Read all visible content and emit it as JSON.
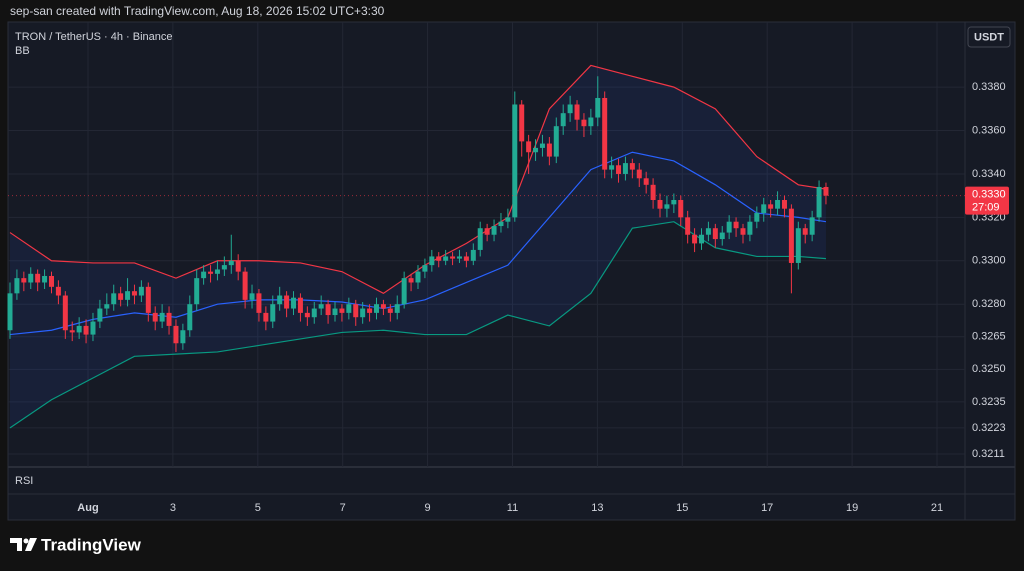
{
  "header": "sep-san created with TradingView.com, Aug 18, 2026 15:02 UTC+3:30",
  "footer": {
    "brand": "TradingView"
  },
  "chart_data": {
    "type": "candlestick",
    "title": "TRON / TetherUS · 4h · Binance",
    "indicator": "BB",
    "lower_pane": "RSI",
    "currency": "USDT",
    "up_color": "#22ab94",
    "down_color": "#f23645",
    "ylim": [
      0.3205,
      0.341
    ],
    "yticks": [
      {
        "value": 0.338,
        "label": "0.3380"
      },
      {
        "value": 0.336,
        "label": "0.3360"
      },
      {
        "value": 0.334,
        "label": "0.3340"
      },
      {
        "value": 0.332,
        "label": "0.3320"
      },
      {
        "value": 0.33,
        "label": "0.3300"
      },
      {
        "value": 0.328,
        "label": "0.3280"
      },
      {
        "value": 0.3265,
        "label": "0.3265"
      },
      {
        "value": 0.325,
        "label": "0.3250"
      },
      {
        "value": 0.3235,
        "label": "0.3235"
      },
      {
        "value": 0.3223,
        "label": "0.3223"
      },
      {
        "value": 0.3211,
        "label": "0.3211"
      }
    ],
    "xtick_labels": [
      "Aug",
      "3",
      "5",
      "7",
      "9",
      "11",
      "13",
      "15",
      "17",
      "19",
      "21"
    ],
    "last_price": {
      "value": 0.333,
      "label": "0.3330"
    },
    "countdown": "27:09",
    "candles": [
      [
        0.3268,
        0.329,
        0.3264,
        0.3285
      ],
      [
        0.3285,
        0.3296,
        0.3282,
        0.3292
      ],
      [
        0.3292,
        0.3295,
        0.3286,
        0.329
      ],
      [
        0.329,
        0.3297,
        0.3287,
        0.3294
      ],
      [
        0.3294,
        0.3296,
        0.3286,
        0.329
      ],
      [
        0.329,
        0.3296,
        0.3287,
        0.3293
      ],
      [
        0.3293,
        0.3295,
        0.3285,
        0.3288
      ],
      [
        0.3288,
        0.3291,
        0.328,
        0.3284
      ],
      [
        0.3284,
        0.3286,
        0.3264,
        0.3268
      ],
      [
        0.3268,
        0.3272,
        0.3263,
        0.3267
      ],
      [
        0.3267,
        0.3274,
        0.3264,
        0.327
      ],
      [
        0.327,
        0.3273,
        0.3262,
        0.3266
      ],
      [
        0.3266,
        0.3276,
        0.3263,
        0.3272
      ],
      [
        0.3272,
        0.3282,
        0.3269,
        0.3278
      ],
      [
        0.3278,
        0.3285,
        0.3275,
        0.328
      ],
      [
        0.328,
        0.3289,
        0.3277,
        0.3285
      ],
      [
        0.3285,
        0.3288,
        0.3279,
        0.3282
      ],
      [
        0.3282,
        0.3292,
        0.3279,
        0.3286
      ],
      [
        0.3286,
        0.3289,
        0.328,
        0.3284
      ],
      [
        0.3284,
        0.3291,
        0.3281,
        0.3288
      ],
      [
        0.3288,
        0.329,
        0.3272,
        0.3276
      ],
      [
        0.3276,
        0.3279,
        0.3268,
        0.3272
      ],
      [
        0.3272,
        0.328,
        0.3269,
        0.3276
      ],
      [
        0.3276,
        0.3279,
        0.3266,
        0.327
      ],
      [
        0.327,
        0.3273,
        0.3258,
        0.3262
      ],
      [
        0.3262,
        0.3271,
        0.3259,
        0.3268
      ],
      [
        0.3268,
        0.3284,
        0.3265,
        0.328
      ],
      [
        0.328,
        0.3296,
        0.3277,
        0.3292
      ],
      [
        0.3292,
        0.3298,
        0.3289,
        0.3295
      ],
      [
        0.3295,
        0.3298,
        0.329,
        0.3294
      ],
      [
        0.3294,
        0.33,
        0.3291,
        0.3296
      ],
      [
        0.3296,
        0.3302,
        0.3293,
        0.3298
      ],
      [
        0.3298,
        0.3312,
        0.3294,
        0.33
      ],
      [
        0.33,
        0.3303,
        0.3291,
        0.3295
      ],
      [
        0.3295,
        0.3297,
        0.3278,
        0.3282
      ],
      [
        0.3282,
        0.3289,
        0.3278,
        0.3285
      ],
      [
        0.3285,
        0.3287,
        0.3272,
        0.3276
      ],
      [
        0.3276,
        0.3279,
        0.3268,
        0.3272
      ],
      [
        0.3272,
        0.3284,
        0.3269,
        0.328
      ],
      [
        0.328,
        0.3288,
        0.3277,
        0.3284
      ],
      [
        0.3284,
        0.3286,
        0.3274,
        0.3278
      ],
      [
        0.3278,
        0.3286,
        0.3275,
        0.3283
      ],
      [
        0.3283,
        0.3285,
        0.3272,
        0.3276
      ],
      [
        0.3276,
        0.3279,
        0.327,
        0.3274
      ],
      [
        0.3274,
        0.3281,
        0.3271,
        0.3278
      ],
      [
        0.3278,
        0.3284,
        0.3275,
        0.328
      ],
      [
        0.328,
        0.3282,
        0.3271,
        0.3275
      ],
      [
        0.3275,
        0.3281,
        0.3272,
        0.3278
      ],
      [
        0.3278,
        0.328,
        0.3272,
        0.3276
      ],
      [
        0.3276,
        0.3283,
        0.3273,
        0.328
      ],
      [
        0.328,
        0.3282,
        0.327,
        0.3274
      ],
      [
        0.3274,
        0.3281,
        0.3271,
        0.3278
      ],
      [
        0.3278,
        0.328,
        0.3272,
        0.3276
      ],
      [
        0.3276,
        0.3283,
        0.3273,
        0.328
      ],
      [
        0.328,
        0.3282,
        0.3275,
        0.3278
      ],
      [
        0.3278,
        0.328,
        0.3272,
        0.3276
      ],
      [
        0.3276,
        0.3284,
        0.3273,
        0.328
      ],
      [
        0.328,
        0.3295,
        0.3278,
        0.3292
      ],
      [
        0.3292,
        0.3294,
        0.3286,
        0.329
      ],
      [
        0.329,
        0.3298,
        0.3287,
        0.3295
      ],
      [
        0.3295,
        0.3301,
        0.3292,
        0.3298
      ],
      [
        0.3298,
        0.3305,
        0.3295,
        0.3302
      ],
      [
        0.3302,
        0.3304,
        0.3297,
        0.33
      ],
      [
        0.33,
        0.3305,
        0.3298,
        0.3302
      ],
      [
        0.3302,
        0.3304,
        0.3298,
        0.3301
      ],
      [
        0.3301,
        0.3305,
        0.3299,
        0.3302
      ],
      [
        0.3302,
        0.3304,
        0.3297,
        0.33
      ],
      [
        0.33,
        0.3308,
        0.3298,
        0.3305
      ],
      [
        0.3305,
        0.3318,
        0.3302,
        0.3315
      ],
      [
        0.3315,
        0.3317,
        0.3309,
        0.3312
      ],
      [
        0.3312,
        0.3319,
        0.3309,
        0.3316
      ],
      [
        0.3316,
        0.3322,
        0.3313,
        0.3318
      ],
      [
        0.3318,
        0.3324,
        0.3315,
        0.332
      ],
      [
        0.332,
        0.3378,
        0.3318,
        0.3372
      ],
      [
        0.3372,
        0.3374,
        0.3348,
        0.3355
      ],
      [
        0.3355,
        0.3358,
        0.334,
        0.335
      ],
      [
        0.335,
        0.3356,
        0.3346,
        0.3352
      ],
      [
        0.3352,
        0.3358,
        0.3348,
        0.3354
      ],
      [
        0.3354,
        0.3357,
        0.3344,
        0.3348
      ],
      [
        0.3348,
        0.3366,
        0.3345,
        0.3362
      ],
      [
        0.3362,
        0.3372,
        0.3358,
        0.3368
      ],
      [
        0.3368,
        0.3376,
        0.3364,
        0.3372
      ],
      [
        0.3372,
        0.3374,
        0.336,
        0.3365
      ],
      [
        0.3365,
        0.3368,
        0.3357,
        0.3362
      ],
      [
        0.3362,
        0.337,
        0.3358,
        0.3366
      ],
      [
        0.3366,
        0.3385,
        0.3362,
        0.3375
      ],
      [
        0.3375,
        0.3378,
        0.3338,
        0.3342
      ],
      [
        0.3342,
        0.3348,
        0.3338,
        0.3344
      ],
      [
        0.3344,
        0.3347,
        0.3336,
        0.334
      ],
      [
        0.334,
        0.3348,
        0.3337,
        0.3345
      ],
      [
        0.3345,
        0.3347,
        0.3338,
        0.3342
      ],
      [
        0.3342,
        0.3345,
        0.3334,
        0.3338
      ],
      [
        0.3338,
        0.3341,
        0.3331,
        0.3335
      ],
      [
        0.3335,
        0.3338,
        0.3324,
        0.3328
      ],
      [
        0.3328,
        0.3331,
        0.332,
        0.3324
      ],
      [
        0.3324,
        0.333,
        0.332,
        0.3326
      ],
      [
        0.3326,
        0.3331,
        0.3322,
        0.3328
      ],
      [
        0.3328,
        0.333,
        0.3316,
        0.332
      ],
      [
        0.332,
        0.3323,
        0.3308,
        0.3312
      ],
      [
        0.3312,
        0.3315,
        0.3304,
        0.3308
      ],
      [
        0.3308,
        0.3315,
        0.3305,
        0.3312
      ],
      [
        0.3312,
        0.3318,
        0.3309,
        0.3315
      ],
      [
        0.3315,
        0.3317,
        0.3306,
        0.331
      ],
      [
        0.331,
        0.3316,
        0.3307,
        0.3313
      ],
      [
        0.3313,
        0.3321,
        0.331,
        0.3318
      ],
      [
        0.3318,
        0.332,
        0.3311,
        0.3315
      ],
      [
        0.3315,
        0.3317,
        0.3308,
        0.3312
      ],
      [
        0.3312,
        0.3321,
        0.3309,
        0.3318
      ],
      [
        0.3318,
        0.3325,
        0.3315,
        0.3322
      ],
      [
        0.3322,
        0.3329,
        0.3318,
        0.3326
      ],
      [
        0.3326,
        0.3328,
        0.332,
        0.3324
      ],
      [
        0.3324,
        0.3332,
        0.3321,
        0.3328
      ],
      [
        0.3328,
        0.333,
        0.332,
        0.3324
      ],
      [
        0.3324,
        0.3326,
        0.3285,
        0.3299
      ],
      [
        0.3299,
        0.3318,
        0.3296,
        0.3315
      ],
      [
        0.3315,
        0.3317,
        0.3308,
        0.3312
      ],
      [
        0.3312,
        0.3323,
        0.3309,
        0.332
      ],
      [
        0.332,
        0.3337,
        0.3318,
        0.3334
      ],
      [
        0.3334,
        0.3336,
        0.3326,
        0.333
      ]
    ],
    "bb": {
      "x": [
        0,
        6,
        12,
        18,
        24,
        30,
        36,
        42,
        48,
        54,
        60,
        66,
        72,
        78,
        84,
        90,
        96,
        102,
        108,
        114,
        118
      ],
      "upper": [
        0.3313,
        0.33,
        0.3299,
        0.3299,
        0.3292,
        0.33,
        0.33,
        0.3299,
        0.3295,
        0.3285,
        0.3298,
        0.3308,
        0.332,
        0.337,
        0.339,
        0.3385,
        0.338,
        0.337,
        0.3348,
        0.3335,
        0.3333
      ],
      "middle": [
        0.3266,
        0.3268,
        0.3273,
        0.3276,
        0.3274,
        0.328,
        0.3282,
        0.3282,
        0.3281,
        0.3278,
        0.3282,
        0.329,
        0.3298,
        0.332,
        0.3342,
        0.335,
        0.3346,
        0.3335,
        0.3322,
        0.332,
        0.3318
      ],
      "lower": [
        0.3223,
        0.3236,
        0.3246,
        0.3256,
        0.3257,
        0.3258,
        0.3261,
        0.3264,
        0.3267,
        0.3268,
        0.3266,
        0.3266,
        0.3275,
        0.327,
        0.3285,
        0.3315,
        0.3318,
        0.3306,
        0.3302,
        0.3302,
        0.3301
      ],
      "upper_color": "#f23645",
      "middle_color": "#2962ff",
      "lower_color": "#089981"
    }
  }
}
